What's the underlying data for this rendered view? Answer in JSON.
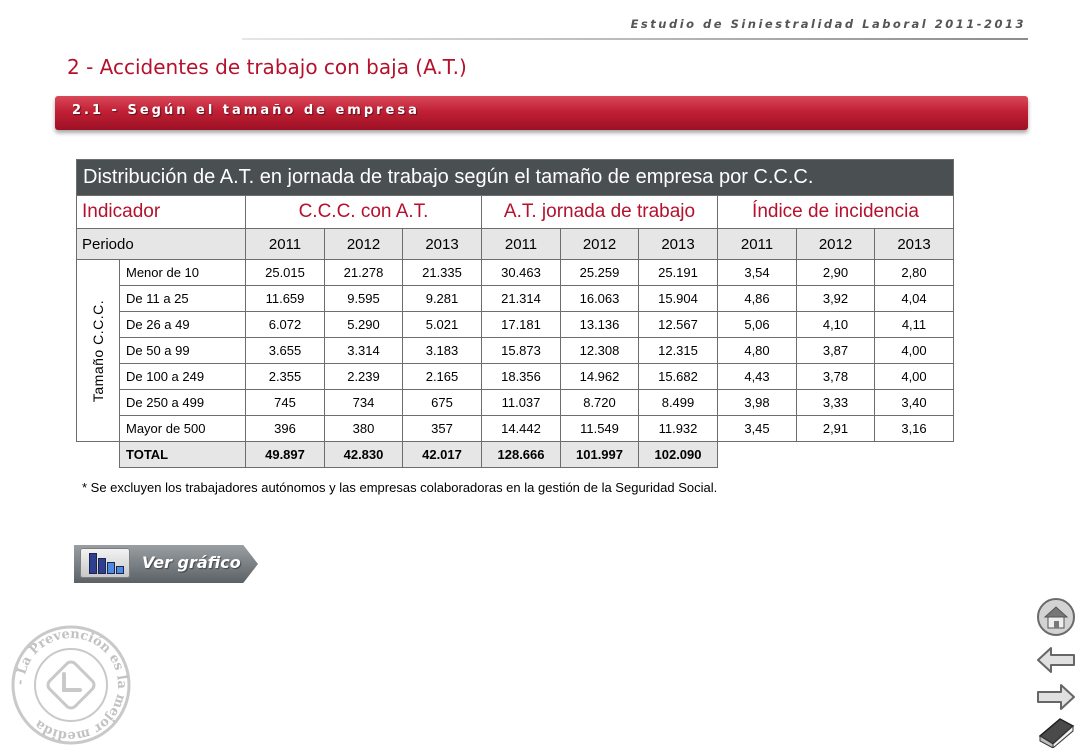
{
  "header": {
    "doc_title": "Estudio de Siniestralidad Laboral 2011-2013"
  },
  "section_title": "2 - Accidentes de trabajo con baja (A.T.)",
  "subsection_title": "2.1 - Según el tamaño de empresa",
  "table": {
    "caption": "Distribución de A.T. en jornada de trabajo según el tamaño de empresa por C.C.C.",
    "indicator_label": "Indicador",
    "groups": [
      "C.C.C. con A.T.",
      "A.T. jornada de trabajo",
      "Índice de incidencia"
    ],
    "period_label": "Periodo",
    "years": [
      "2011",
      "2012",
      "2013",
      "2011",
      "2012",
      "2013",
      "2011",
      "2012",
      "2013"
    ],
    "row_group_label": "Tamaño C.C.C.",
    "rows": [
      {
        "label": "Menor de 10",
        "values": [
          "25.015",
          "21.278",
          "21.335",
          "30.463",
          "25.259",
          "25.191",
          "3,54",
          "2,90",
          "2,80"
        ]
      },
      {
        "label": "De 11 a 25",
        "values": [
          "11.659",
          "9.595",
          "9.281",
          "21.314",
          "16.063",
          "15.904",
          "4,86",
          "3,92",
          "4,04"
        ]
      },
      {
        "label": "De 26 a 49",
        "values": [
          "6.072",
          "5.290",
          "5.021",
          "17.181",
          "13.136",
          "12.567",
          "5,06",
          "4,10",
          "4,11"
        ]
      },
      {
        "label": "De 50 a 99",
        "values": [
          "3.655",
          "3.314",
          "3.183",
          "15.873",
          "12.308",
          "12.315",
          "4,80",
          "3,87",
          "4,00"
        ]
      },
      {
        "label": "De 100 a 249",
        "values": [
          "2.355",
          "2.239",
          "2.165",
          "18.356",
          "14.962",
          "15.682",
          "4,43",
          "3,78",
          "4,00"
        ]
      },
      {
        "label": "De 250 a 499",
        "values": [
          "745",
          "734",
          "675",
          "11.037",
          "8.720",
          "8.499",
          "3,98",
          "3,33",
          "3,40"
        ]
      },
      {
        "label": "Mayor de 500",
        "values": [
          "396",
          "380",
          "357",
          "14.442",
          "11.549",
          "11.932",
          "3,45",
          "2,91",
          "3,16"
        ]
      }
    ],
    "total": {
      "label": "TOTAL",
      "values": [
        "49.897",
        "42.830",
        "42.017",
        "128.666",
        "101.997",
        "102.090"
      ]
    }
  },
  "footnote": "* Se excluyen los trabajadores autónomos y las empresas colaboradoras en la gestión de la Seguridad Social.",
  "chart_button": {
    "label": "Ver gráfico",
    "icon": "bar-chart-icon"
  },
  "stamp": {
    "text": "- La Prevención es la mejor medida",
    "icon": "seal-stamp-icon"
  },
  "nav": [
    {
      "name": "home",
      "icon": "home-icon"
    },
    {
      "name": "back",
      "icon": "arrow-left-icon"
    },
    {
      "name": "forward",
      "icon": "arrow-right-icon"
    },
    {
      "name": "index",
      "icon": "book-icon"
    }
  ],
  "colors": {
    "accent": "#b5112d",
    "caption_bg": "#4a4f52",
    "period_bg": "#e6e6e6",
    "border": "#6d6d6d"
  }
}
